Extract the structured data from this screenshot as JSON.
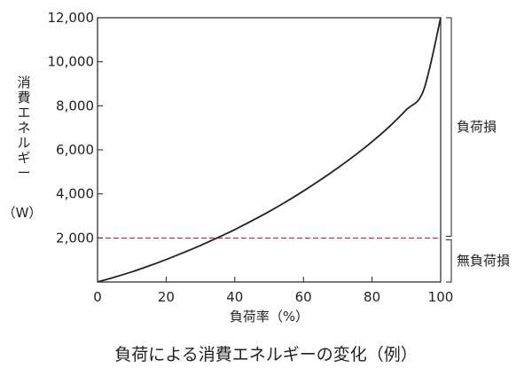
{
  "chart_data": {
    "type": "line",
    "title": "負荷による消費エネルギーの変化（例）",
    "xlabel": "負荷率（%）",
    "ylabel_chars": [
      "消",
      "費",
      "エ",
      "ネ",
      "ル",
      "ギ",
      "ー"
    ],
    "ylabel_unit": "（W）",
    "xlim": [
      0,
      100
    ],
    "ylim": [
      0,
      12000
    ],
    "x_ticks": [
      0,
      20,
      40,
      60,
      80,
      100
    ],
    "x_tick_labels": [
      "0",
      "20",
      "40",
      "60",
      "80",
      "100"
    ],
    "y_ticks": [
      2000,
      4000,
      6000,
      8000,
      10000,
      12000
    ],
    "y_tick_labels": [
      "2,000",
      "4,000",
      "6,000",
      "8,000",
      "10,000",
      "12,000"
    ],
    "series": [
      {
        "type": "line",
        "color": "#222222",
        "x": [
          0,
          5,
          10,
          15,
          20,
          25,
          30,
          35,
          40,
          41,
          45,
          50,
          55,
          60,
          65,
          70,
          75,
          80,
          85,
          90,
          95,
          100
        ],
        "y": [
          0,
          220,
          460,
          730,
          1020,
          1330,
          1660,
          2010,
          2380,
          2460,
          2780,
          3200,
          3650,
          4130,
          4640,
          5180,
          5750,
          6370,
          7050,
          7820,
          8700,
          12000
        ]
      }
    ],
    "reference_line": {
      "y": 2000,
      "style": "dashed",
      "color": "#8b1a3a"
    },
    "brackets": [
      {
        "label": "負荷損",
        "y_from": 2000,
        "y_to": 12000
      },
      {
        "label": "無負荷損",
        "y_from": 0,
        "y_to": 2000
      }
    ],
    "grid": false
  }
}
